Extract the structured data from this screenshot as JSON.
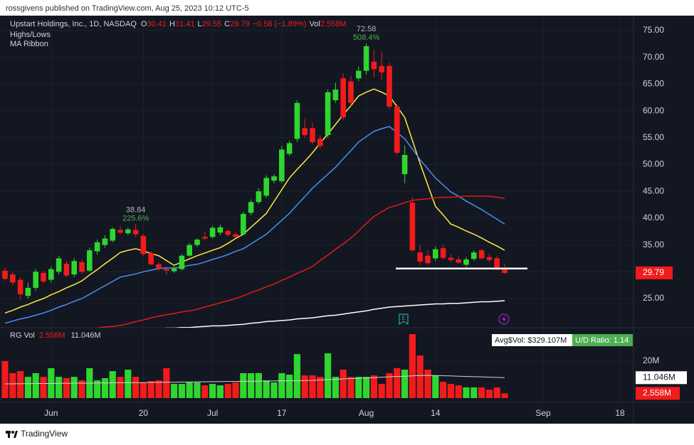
{
  "header": {
    "text": "rossgivens published on TradingView.com, Aug 25, 2023 10:12 UTC-5"
  },
  "footer": {
    "brand": "TradingView"
  },
  "chart_data": {
    "type": "candlestick",
    "title": "Upstart Holdings, Inc., 1D, NASDAQ",
    "ohlc_legend": {
      "o": "O",
      "h": "H",
      "l": "L",
      "c": "C",
      "change": "−0.58 (−1.89%)",
      "vol": "Vol"
    },
    "indicators": [
      "Highs/Lows",
      "MA Ribbon"
    ],
    "up_color": "#2fd62f",
    "down_color": "#f21b1b",
    "xlim": [
      -0.65,
      81.76
    ],
    "xticks": [
      {
        "value": 6,
        "label": "Jun"
      },
      {
        "value": 18,
        "label": "20"
      },
      {
        "value": 27,
        "label": "Jul"
      },
      {
        "value": 36,
        "label": "17"
      },
      {
        "value": 47,
        "label": "Aug"
      },
      {
        "value": 56,
        "label": "14"
      },
      {
        "value": 70,
        "label": "Sep"
      },
      {
        "value": 80,
        "label": "18"
      }
    ],
    "ylim": [
      19.56,
      77.79
    ],
    "yticks": [
      {
        "value": 25,
        "label": "25.00"
      },
      {
        "value": 30,
        "label": "30.00"
      },
      {
        "value": 35,
        "label": "35.00"
      },
      {
        "value": 40,
        "label": "40.00"
      },
      {
        "value": 45,
        "label": "45.00"
      },
      {
        "value": 50,
        "label": "50.00"
      },
      {
        "value": 55,
        "label": "55.00"
      },
      {
        "value": 60,
        "label": "60.00"
      },
      {
        "value": 65,
        "label": "65.00"
      },
      {
        "value": 70,
        "label": "70.00"
      },
      {
        "value": 75,
        "label": "75.00"
      }
    ],
    "grid": true,
    "open": [
      30.2,
      29.5,
      28.5,
      25.5,
      27,
      29.8,
      28.5,
      30,
      31.5,
      29.5,
      31.8,
      30.2,
      33.8,
      35,
      35.8,
      37.8,
      37.2,
      37.8,
      36.7,
      33.5,
      31.4,
      30.5,
      30.1,
      30.5,
      33,
      35,
      36.5,
      36.5,
      37.3,
      37.6,
      37,
      37,
      41,
      43,
      44.2,
      47,
      46.9,
      52,
      54.8,
      56.8,
      56.8,
      54.8,
      55.5,
      62,
      66.1,
      65.5,
      66.1,
      67.5,
      69.2,
      68.4,
      68.4,
      60.8,
      48.2,
      42.9,
      33.6,
      33,
      32.5,
      34.4,
      32.6,
      32.3,
      31.3,
      32.4,
      34,
      32.7,
      32.5,
      30.41
    ],
    "high": [
      30.8,
      30,
      29,
      28,
      30.5,
      30.2,
      31,
      33,
      32,
      32.5,
      32.3,
      34.5,
      36,
      36.8,
      38.3,
      38.5,
      38.2,
      38.84,
      37,
      33.8,
      31.8,
      31,
      31,
      33.3,
      35.4,
      36.3,
      37.5,
      38.6,
      38.8,
      38,
      37.4,
      41.2,
      43.5,
      45.6,
      48,
      48.2,
      53.5,
      54.5,
      62,
      58.5,
      57.8,
      55.5,
      64,
      65.3,
      67,
      66.5,
      68.3,
      72.58,
      71.5,
      71,
      69,
      61.2,
      53.6,
      43.9,
      35,
      34,
      34.7,
      35,
      33.2,
      32.8,
      32.8,
      34,
      34.3,
      33.3,
      33,
      31.41
    ],
    "low": [
      28.3,
      27.5,
      24.8,
      25,
      26.5,
      27.8,
      28,
      29.5,
      29,
      29,
      29.6,
      30,
      33.2,
      34.5,
      35.5,
      37,
      36.8,
      36.5,
      33,
      31.2,
      30.2,
      29.5,
      29.8,
      30.2,
      32.8,
      34.6,
      35.8,
      36.2,
      36.8,
      36.6,
      36.3,
      36.8,
      40.5,
      42.6,
      43.8,
      46.5,
      46.5,
      51.6,
      54.2,
      55,
      53.8,
      53,
      55,
      61.5,
      58.3,
      61,
      65.6,
      66.8,
      66.3,
      65.8,
      60.3,
      51.8,
      46.5,
      33.7,
      31.2,
      31.3,
      32,
      32.3,
      31.8,
      31.5,
      30.9,
      32,
      32.3,
      31.8,
      30.3,
      29.55
    ],
    "close": [
      28.7,
      28,
      25.8,
      27,
      30,
      28.2,
      30.5,
      32.5,
      29.3,
      32,
      30,
      34,
      35.5,
      36.2,
      38,
      37.3,
      37.9,
      37,
      33.3,
      31.4,
      30.6,
      30.2,
      30.6,
      33,
      35,
      36,
      36.2,
      38.2,
      38.3,
      36.9,
      36.5,
      40.8,
      43,
      45,
      47.5,
      47.8,
      52.8,
      54,
      61.5,
      55.5,
      54.2,
      53.5,
      63.5,
      64,
      58.8,
      61.5,
      67.5,
      72.1,
      67.8,
      67.2,
      60.8,
      52.2,
      51.8,
      34,
      31.9,
      31.6,
      34.2,
      32.6,
      32.2,
      31.7,
      32.3,
      33.6,
      32.5,
      32.2,
      30.4,
      29.79
    ],
    "moving_averages": [
      {
        "color": "#ffeb3b",
        "values": [
          22.3,
          22.8,
          23.4,
          23.9,
          24.5,
          25,
          25.7,
          26.3,
          27,
          27.6,
          28.3,
          29.4,
          30.4,
          31.5,
          32.5,
          33.6,
          34,
          34.3,
          33.9,
          33.4,
          33,
          32.1,
          31.2,
          31.8,
          32.4,
          33,
          33.5,
          34,
          34.5,
          35.3,
          36.2,
          37,
          38.3,
          39.6,
          40.9,
          43.1,
          45.3,
          47.5,
          49.1,
          50.6,
          52.2,
          54,
          55.7,
          57.5,
          59.3,
          61,
          62.8,
          63.5,
          64.1,
          63.5,
          62.8,
          60.8,
          58.8,
          54.5,
          50.2,
          46.2,
          42.2,
          40.6,
          38.9,
          38.3,
          37.6,
          37,
          36.3,
          35.5,
          34.8,
          34
        ]
      },
      {
        "color": "#4a8ff0",
        "values": [
          20.4,
          20.8,
          21.2,
          21.5,
          21.9,
          22.3,
          22.8,
          23.4,
          23.9,
          24.5,
          25,
          25.8,
          26.6,
          27.4,
          28.2,
          29,
          29.3,
          29.6,
          30,
          30.3,
          30.6,
          30.7,
          30.7,
          30.9,
          31.2,
          31.4,
          31.8,
          32.3,
          32.7,
          33.2,
          33.8,
          34.3,
          35.2,
          36.1,
          37,
          38.3,
          39.6,
          40.9,
          42.5,
          44,
          45.6,
          46.9,
          48.2,
          49.5,
          51.1,
          52.6,
          54.2,
          55.2,
          56.2,
          56.7,
          57.1,
          56,
          54.8,
          52.9,
          50.9,
          49.2,
          47.5,
          46.2,
          44.9,
          44.1,
          43.2,
          42.4,
          41.6,
          40.7,
          39.8,
          38.9
        ]
      },
      {
        "color": "#e01b1b",
        "values": [
          17.7,
          17.8,
          18,
          18.1,
          18.3,
          18.4,
          18.6,
          18.7,
          18.9,
          19,
          19.2,
          19.4,
          19.5,
          19.7,
          19.8,
          20,
          20.3,
          20.7,
          21,
          21.4,
          21.7,
          22,
          22.2,
          22.5,
          22.7,
          23,
          23.4,
          23.8,
          24.2,
          24.6,
          25,
          25.5,
          26.1,
          26.6,
          27.2,
          27.7,
          28.4,
          29,
          29.7,
          30.3,
          31,
          32.1,
          33.1,
          34.2,
          35.2,
          36.3,
          37.6,
          39,
          40.3,
          41.2,
          42,
          42.4,
          42.9,
          43.3,
          43.5,
          43.6,
          43.8,
          43.9,
          43.9,
          44,
          44.1,
          44.1,
          44.1,
          44.1,
          43.9,
          43.7
        ]
      },
      {
        "color": "#ffffff",
        "values": [
          18.4,
          18.5,
          18.5,
          18.6,
          18.6,
          18.7,
          18.7,
          18.8,
          18.8,
          18.9,
          18.9,
          19,
          19,
          19.1,
          19.1,
          19.2,
          19.2,
          19.3,
          19.3,
          19.4,
          19.4,
          19.5,
          19.5,
          19.6,
          19.6,
          19.7,
          19.8,
          19.9,
          19.9,
          20,
          20.1,
          20.2,
          20.4,
          20.5,
          20.7,
          20.8,
          20.9,
          21,
          21.2,
          21.3,
          21.4,
          21.6,
          21.8,
          21.9,
          22.1,
          22.3,
          22.5,
          22.7,
          23,
          23.2,
          23.4,
          23.5,
          23.6,
          23.7,
          23.8,
          23.9,
          24,
          24,
          24.1,
          24.1,
          24.2,
          24.3,
          24.4,
          24.4,
          24.5,
          24.6
        ]
      }
    ],
    "highs_lows": [
      {
        "value": 72.58,
        "change": "508.4%"
      },
      {
        "value": 38.84,
        "change": "225.6%"
      }
    ],
    "support_line": {
      "value": 30.6,
      "color": "#ffffff"
    },
    "volume": {
      "title": "RG Vol",
      "last_label": "2.558M",
      "ma_last_label": "11.046M",
      "avg_dollar_vol": "Avg$Vol: $329.107M",
      "ud_ratio": "U/D Ratio: 1.14",
      "ylim": [
        0,
        38.1
      ],
      "yticks": [
        {
          "value": 20,
          "label": "20M"
        }
      ],
      "values": [
        20,
        13.5,
        14.6,
        11.5,
        13.5,
        11.5,
        16.2,
        11.5,
        10.8,
        11.5,
        9.6,
        16.2,
        9.6,
        10.8,
        14.6,
        11.5,
        15.4,
        11.5,
        8.5,
        9.2,
        9.6,
        16.2,
        7.7,
        7.7,
        8.5,
        8.5,
        6.9,
        7.7,
        6.9,
        7.7,
        8.5,
        13.5,
        13.5,
        13.5,
        9.6,
        8.5,
        13.5,
        12.7,
        23.8,
        12.3,
        12.3,
        11.5,
        24.2,
        11.5,
        15.4,
        11.5,
        11.5,
        11.5,
        12.3,
        7.7,
        13.5,
        16.2,
        15.4,
        34.6,
        23.1,
        15.4,
        12.3,
        8.8,
        7.7,
        6.9,
        5.8,
        5.8,
        5.8,
        4.6,
        5.8,
        2.558
      ],
      "ma_values": [
        7.7,
        7.7,
        7.8,
        7.8,
        7.9,
        7.9,
        7.9,
        8,
        8,
        8.1,
        8.1,
        8.1,
        8.2,
        8.2,
        8.3,
        8.3,
        8.3,
        8.4,
        8.4,
        8.5,
        8.5,
        8.6,
        8.6,
        8.7,
        8.7,
        8.8,
        8.8,
        8.9,
        8.9,
        9,
        9,
        9.1,
        9.1,
        9.2,
        9.2,
        9.3,
        9.3,
        9.4,
        9.4,
        9.5,
        9.6,
        9.8,
        10,
        10.2,
        10.4,
        10.6,
        10.7,
        10.9,
        11.1,
        11.3,
        11.5,
        11.7,
        11.8,
        12,
        12.2,
        12.3,
        12.2,
        12.1,
        12,
        11.8,
        11.7,
        11.6,
        11.5,
        11.3,
        11.2,
        11.046
      ]
    }
  }
}
